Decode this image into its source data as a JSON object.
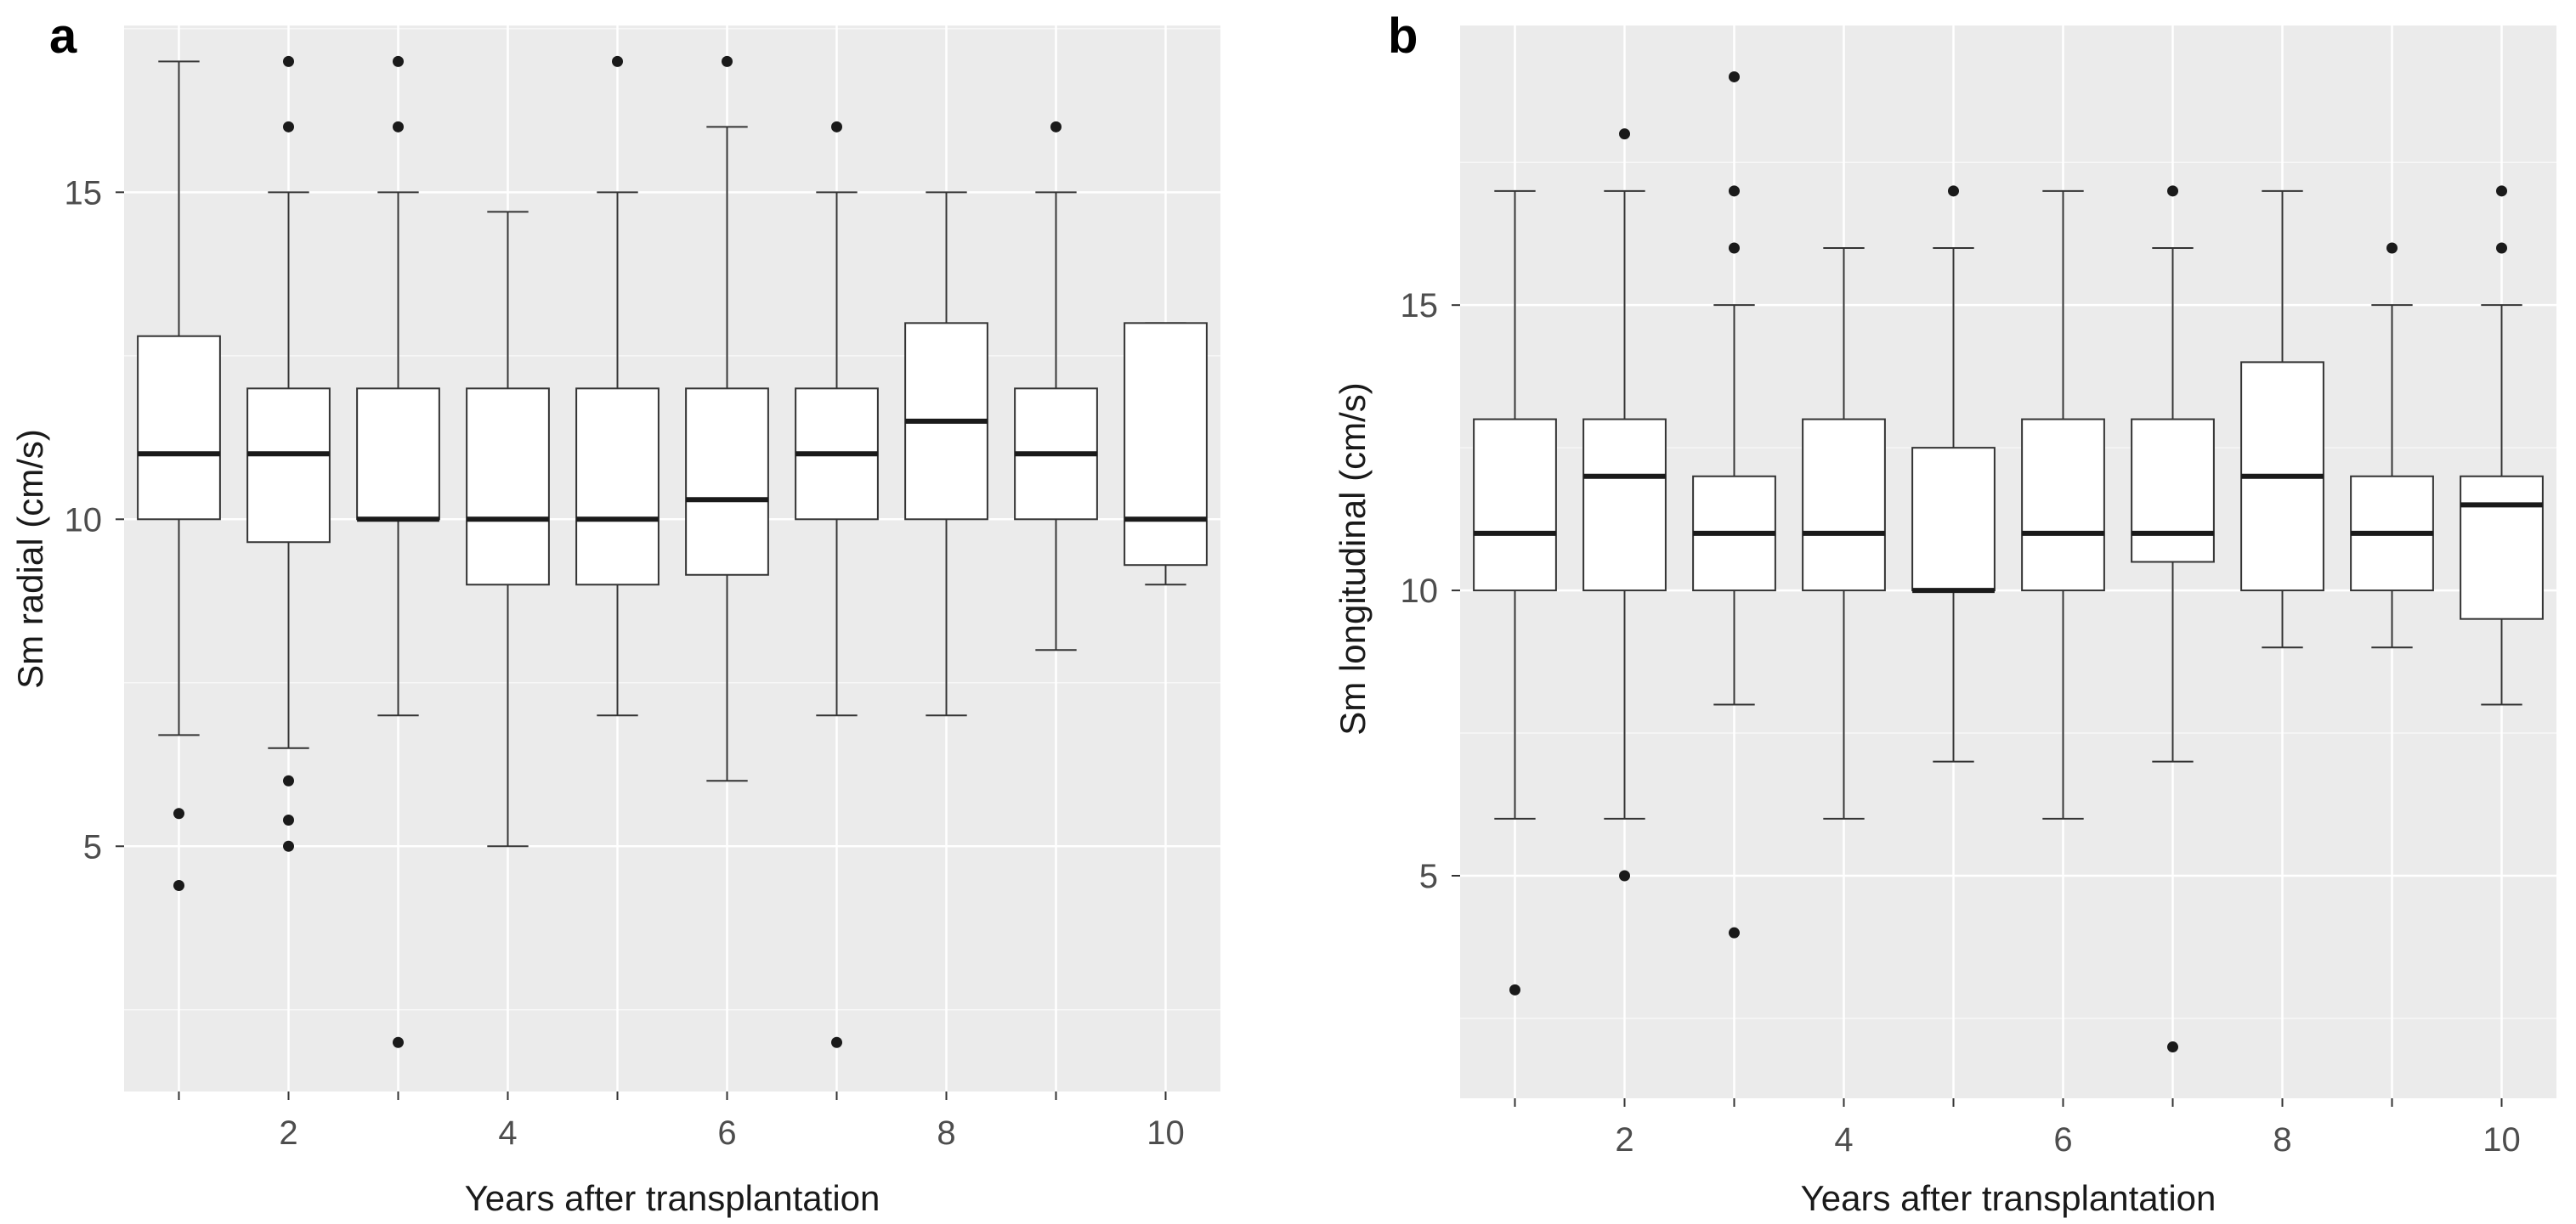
{
  "chart_data": [
    {
      "panel_label": "a",
      "type": "box",
      "title": "",
      "xlabel": "Years after transplantation",
      "ylabel": "Sm radial (cm/s)",
      "xlim": [
        0.5,
        10.5
      ],
      "ylim": [
        1.25,
        17.55
      ],
      "x_ticks": [
        2,
        4,
        6,
        8,
        10
      ],
      "x_tick_labels": [
        "2",
        "4",
        "6",
        "8",
        "10"
      ],
      "y_ticks": [
        5,
        10,
        15
      ],
      "y_tick_labels": [
        "5",
        "10",
        "15"
      ],
      "grid": true,
      "boxes": [
        {
          "year": 1,
          "whisker_low": 6.7,
          "q1": 10,
          "median": 11,
          "q3": 12.8,
          "whisker_high": 17,
          "outliers": [
            5.5,
            4.4
          ]
        },
        {
          "year": 2,
          "whisker_low": 6.5,
          "q1": 9.65,
          "median": 11,
          "q3": 12,
          "whisker_high": 15,
          "outliers": [
            17,
            16,
            6,
            5.4,
            5
          ]
        },
        {
          "year": 3,
          "whisker_low": 7,
          "q1": 10,
          "median": 10,
          "q3": 12,
          "whisker_high": 15,
          "outliers": [
            17,
            16,
            2
          ]
        },
        {
          "year": 4,
          "whisker_low": 5,
          "q1": 9,
          "median": 10,
          "q3": 12,
          "whisker_high": 14.7,
          "outliers": []
        },
        {
          "year": 5,
          "whisker_low": 7,
          "q1": 9,
          "median": 10,
          "q3": 12,
          "whisker_high": 15,
          "outliers": [
            17
          ]
        },
        {
          "year": 6,
          "whisker_low": 6,
          "q1": 9.15,
          "median": 10.3,
          "q3": 12,
          "whisker_high": 16,
          "outliers": [
            17
          ]
        },
        {
          "year": 7,
          "whisker_low": 7,
          "q1": 10,
          "median": 11,
          "q3": 12,
          "whisker_high": 15,
          "outliers": [
            16,
            2
          ]
        },
        {
          "year": 8,
          "whisker_low": 7,
          "q1": 10,
          "median": 11.5,
          "q3": 13,
          "whisker_high": 15,
          "outliers": []
        },
        {
          "year": 9,
          "whisker_low": 8,
          "q1": 10,
          "median": 11,
          "q3": 12,
          "whisker_high": 15,
          "outliers": [
            16
          ]
        },
        {
          "year": 10,
          "whisker_low": 9,
          "q1": 9.3,
          "median": 10,
          "q3": 13,
          "whisker_high": 13,
          "outliers": []
        }
      ]
    },
    {
      "panel_label": "b",
      "type": "box",
      "title": "",
      "xlabel": "Years after transplantation",
      "ylabel": "Sm longitudinal (cm/s)",
      "xlim": [
        0.5,
        10.5
      ],
      "ylim": [
        1.1,
        19.9
      ],
      "x_ticks": [
        2,
        4,
        6,
        8,
        10
      ],
      "x_tick_labels": [
        "2",
        "4",
        "6",
        "8",
        "10"
      ],
      "y_ticks": [
        5,
        10,
        15
      ],
      "y_tick_labels": [
        "5",
        "10",
        "15"
      ],
      "grid": true,
      "boxes": [
        {
          "year": 1,
          "whisker_low": 6,
          "q1": 10,
          "median": 11,
          "q3": 13,
          "whisker_high": 17,
          "outliers": [
            3
          ]
        },
        {
          "year": 2,
          "whisker_low": 6,
          "q1": 10,
          "median": 12,
          "q3": 13,
          "whisker_high": 17,
          "outliers": [
            18,
            5
          ]
        },
        {
          "year": 3,
          "whisker_low": 8,
          "q1": 10,
          "median": 11,
          "q3": 12,
          "whisker_high": 15,
          "outliers": [
            19,
            17,
            16,
            4
          ]
        },
        {
          "year": 4,
          "whisker_low": 6,
          "q1": 10,
          "median": 11,
          "q3": 13,
          "whisker_high": 16,
          "outliers": []
        },
        {
          "year": 5,
          "whisker_low": 7,
          "q1": 10,
          "median": 10,
          "q3": 12.5,
          "whisker_high": 16,
          "outliers": [
            17
          ]
        },
        {
          "year": 6,
          "whisker_low": 6,
          "q1": 10,
          "median": 11,
          "q3": 13,
          "whisker_high": 17,
          "outliers": []
        },
        {
          "year": 7,
          "whisker_low": 7,
          "q1": 10.5,
          "median": 11,
          "q3": 13,
          "whisker_high": 16,
          "outliers": [
            17,
            2
          ]
        },
        {
          "year": 8,
          "whisker_low": 9,
          "q1": 10,
          "median": 12,
          "q3": 14,
          "whisker_high": 17,
          "outliers": []
        },
        {
          "year": 9,
          "whisker_low": 9,
          "q1": 10,
          "median": 11,
          "q3": 12,
          "whisker_high": 15,
          "outliers": [
            16
          ]
        },
        {
          "year": 10,
          "whisker_low": 8,
          "q1": 9.5,
          "median": 11.5,
          "q3": 12,
          "whisker_high": 15,
          "outliers": [
            17,
            16
          ]
        }
      ]
    }
  ]
}
